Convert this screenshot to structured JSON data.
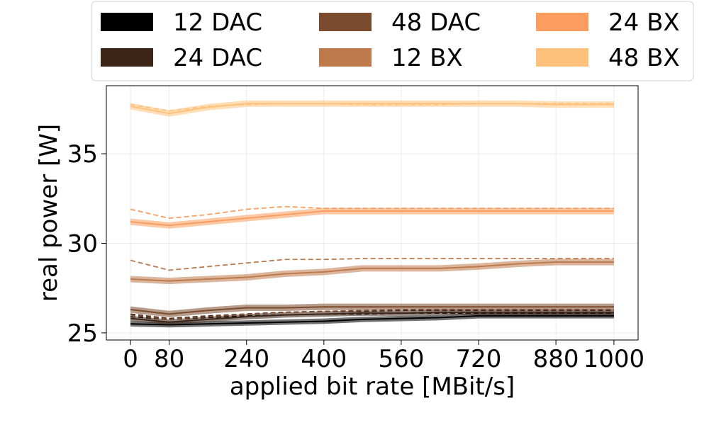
{
  "chart_data": {
    "type": "line",
    "xlabel": "applied bit rate [MBit/s]",
    "ylabel": "real power [W]",
    "xlim": [
      -50,
      1050
    ],
    "ylim": [
      24.6,
      38.8
    ],
    "xticks": [
      0,
      80,
      240,
      400,
      560,
      720,
      880,
      1000
    ],
    "yticks": [
      25,
      30,
      35
    ],
    "grid": true,
    "legend": {
      "placement": "top",
      "columns": 3
    },
    "x": [
      0,
      80,
      160,
      240,
      320,
      400,
      480,
      560,
      640,
      720,
      800,
      880,
      960,
      1000
    ],
    "series": [
      {
        "name": "12 DAC",
        "color": "#000000",
        "values": [
          25.5,
          25.45,
          25.5,
          25.55,
          25.6,
          25.65,
          25.75,
          25.8,
          25.85,
          25.95,
          25.95,
          25.95,
          25.95,
          25.95
        ],
        "band": 0.15,
        "dashed": [
          25.9,
          25.75,
          25.85,
          25.95,
          26.0,
          26.05,
          26.05,
          26.1,
          26.1,
          26.1,
          26.1,
          26.1,
          26.1,
          26.1
        ]
      },
      {
        "name": "24 DAC",
        "color": "#3d2517",
        "values": [
          25.8,
          25.6,
          25.75,
          25.9,
          26.0,
          26.05,
          26.1,
          26.1,
          26.15,
          26.15,
          26.15,
          26.15,
          26.15,
          26.15
        ],
        "band": 0.15,
        "dashed": [
          26.05,
          25.8,
          25.95,
          26.05,
          26.15,
          26.2,
          26.2,
          26.25,
          26.25,
          26.25,
          26.25,
          26.25,
          26.25,
          26.25
        ]
      },
      {
        "name": "48 DAC",
        "color": "#7b4b2e",
        "values": [
          26.3,
          26.05,
          26.25,
          26.4,
          26.4,
          26.45,
          26.45,
          26.45,
          26.45,
          26.45,
          26.45,
          26.45,
          26.45,
          26.45
        ],
        "band": 0.18,
        "dashed": [
          26.0,
          25.75,
          25.9,
          26.05,
          26.15,
          26.2,
          26.25,
          26.3,
          26.3,
          26.3,
          26.3,
          26.3,
          26.3,
          26.3
        ]
      },
      {
        "name": "12 BX",
        "color": "#be7a4c",
        "values": [
          28.0,
          27.9,
          28.0,
          28.1,
          28.3,
          28.4,
          28.6,
          28.6,
          28.6,
          28.7,
          28.85,
          28.95,
          28.95,
          28.95
        ],
        "band": 0.18,
        "dashed": [
          29.05,
          28.5,
          28.7,
          28.9,
          29.1,
          29.1,
          29.15,
          29.15,
          29.15,
          29.15,
          29.15,
          29.15,
          29.15,
          29.15
        ]
      },
      {
        "name": "24 BX",
        "color": "#fa9d5e",
        "values": [
          31.2,
          31.0,
          31.2,
          31.4,
          31.6,
          31.8,
          31.8,
          31.8,
          31.8,
          31.8,
          31.8,
          31.8,
          31.8,
          31.8
        ],
        "band": 0.18,
        "dashed": [
          31.9,
          31.4,
          31.6,
          31.9,
          32.05,
          31.95,
          31.95,
          31.95,
          31.95,
          31.95,
          31.95,
          31.95,
          31.95,
          31.95
        ]
      },
      {
        "name": "48 BX",
        "color": "#ffc27d",
        "values": [
          37.65,
          37.25,
          37.6,
          37.8,
          37.8,
          37.8,
          37.8,
          37.8,
          37.8,
          37.8,
          37.8,
          37.75,
          37.75,
          37.75
        ],
        "band": 0.18,
        "dashed": [
          37.75,
          37.4,
          37.65,
          37.75,
          37.8,
          37.8,
          37.75,
          37.75,
          37.75,
          37.8,
          37.8,
          37.8,
          37.8,
          37.8
        ]
      }
    ]
  }
}
